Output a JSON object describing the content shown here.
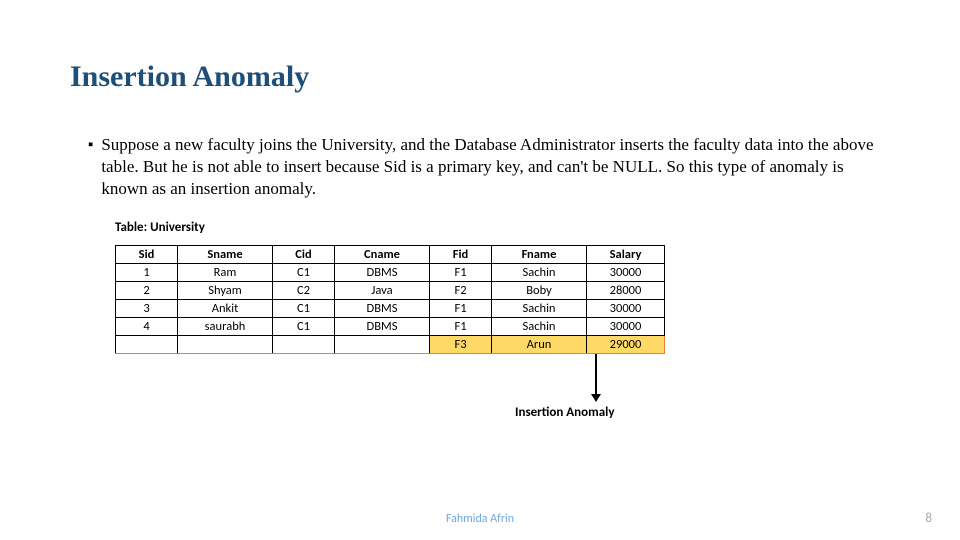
{
  "title": "Insertion Anomaly",
  "bullet_marker": "▪",
  "body_text": "Suppose a new faculty joins the University, and the Database Administrator inserts the faculty data into the above table. But he is not able to insert because Sid is a primary key, and can't be NULL. So this type of anomaly is known as an insertion anomaly.",
  "table_label": "Table: University",
  "table": {
    "columns": [
      "Sid",
      "Sname",
      "Cid",
      "Cname",
      "Fid",
      "Fname",
      "Salary"
    ],
    "col_classes": [
      "col-sid",
      "col-sname",
      "col-cid",
      "col-cname",
      "col-fid",
      "col-fname",
      "col-sal"
    ],
    "rows": [
      {
        "cells": [
          "1",
          "Ram",
          "C1",
          "DBMS",
          "F1",
          "Sachin",
          "30000"
        ],
        "highlight": false
      },
      {
        "cells": [
          "2",
          "Shyam",
          "C2",
          "Java",
          "F2",
          "Boby",
          "28000"
        ],
        "highlight": false
      },
      {
        "cells": [
          "3",
          "Ankit",
          "C1",
          "DBMS",
          "F1",
          "Sachin",
          "30000"
        ],
        "highlight": false
      },
      {
        "cells": [
          "4",
          "saurabh",
          "C1",
          "DBMS",
          "F1",
          "Sachin",
          "30000"
        ],
        "highlight": false
      },
      {
        "cells": [
          "",
          "",
          "",
          "",
          "F3",
          "Arun",
          "29000"
        ],
        "highlight": true,
        "highlight_from": 4
      }
    ]
  },
  "anomaly_label": "Insertion Anomaly",
  "footer_author": "Fahmida Afrin",
  "footer_page": "8",
  "colors": {
    "title": "#1f4e79",
    "highlight_fill": "#ffd966",
    "highlight_border": "#ed7d31",
    "author": "#6fa8dc",
    "page": "#a6a6a6"
  }
}
